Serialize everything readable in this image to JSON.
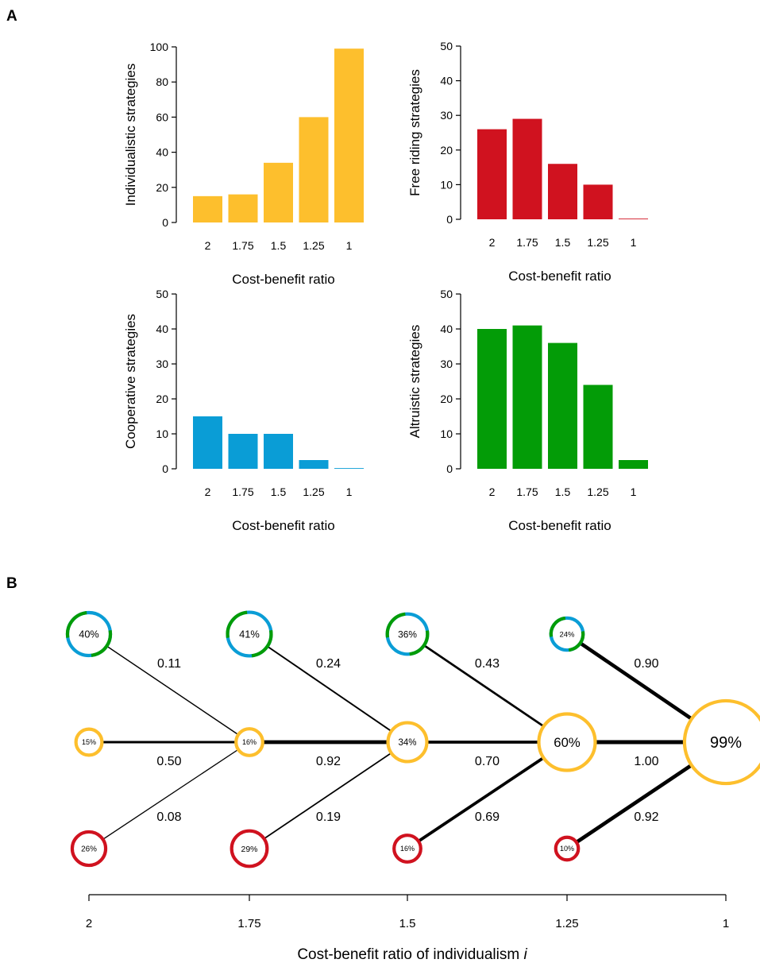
{
  "panels": {
    "a": "A",
    "b": "B"
  },
  "colors": {
    "individualistic": "#FDBF2D",
    "free_riding": "#D0121F",
    "cooperative": "#0A9DD6",
    "altruistic": "#039C07",
    "edge": "#000000"
  },
  "chart_data": [
    {
      "type": "bar",
      "panel": "A",
      "categories": [
        "2",
        "1.75",
        "1.5",
        "1.25",
        "1"
      ],
      "values": [
        15,
        16,
        34,
        60,
        99
      ],
      "title": "",
      "xlabel": "Cost-benefit ratio",
      "ylabel": "Individualistic strategies",
      "ylim": [
        0,
        100
      ],
      "yticks": [
        0,
        20,
        40,
        60,
        80,
        100
      ],
      "color": "#FDBF2D",
      "grid": false
    },
    {
      "type": "bar",
      "panel": "A",
      "categories": [
        "2",
        "1.75",
        "1.5",
        "1.25",
        "1"
      ],
      "values": [
        26,
        29,
        16,
        10,
        0.2
      ],
      "title": "",
      "xlabel": "Cost-benefit ratio",
      "ylabel": "Free riding strategies",
      "ylim": [
        0,
        50
      ],
      "yticks": [
        0,
        10,
        20,
        30,
        40,
        50
      ],
      "color": "#D0121F",
      "grid": false
    },
    {
      "type": "bar",
      "panel": "A",
      "categories": [
        "2",
        "1.75",
        "1.5",
        "1.25",
        "1"
      ],
      "values": [
        15,
        10,
        10,
        2.5,
        0.2
      ],
      "title": "",
      "xlabel": "Cost-benefit ratio",
      "ylabel": "Cooperative strategies",
      "ylim": [
        0,
        50
      ],
      "yticks": [
        0,
        10,
        20,
        30,
        40,
        50
      ],
      "color": "#0A9DD6",
      "grid": false
    },
    {
      "type": "bar",
      "panel": "A",
      "categories": [
        "2",
        "1.75",
        "1.5",
        "1.25",
        "1"
      ],
      "values": [
        40,
        41,
        36,
        24,
        2.5
      ],
      "title": "",
      "xlabel": "Cost-benefit ratio",
      "ylabel": "Altruistic strategies",
      "ylim": [
        0,
        50
      ],
      "yticks": [
        0,
        10,
        20,
        30,
        40,
        50
      ],
      "color": "#039C07",
      "grid": false
    },
    {
      "type": "network",
      "panel": "B",
      "xlabel": "Cost-benefit ratio of individualism ",
      "xlabel_italic": "i",
      "x_categories": [
        "2",
        "1.75",
        "1.5",
        "1.25",
        "1"
      ],
      "rows": [
        "top",
        "middle",
        "bottom"
      ],
      "nodes": [
        {
          "id": "t0",
          "col": 0,
          "row": "top",
          "label": "40%",
          "value": 40,
          "ring": "mixed"
        },
        {
          "id": "t1",
          "col": 1,
          "row": "top",
          "label": "41%",
          "value": 41,
          "ring": "mixed"
        },
        {
          "id": "t2",
          "col": 2,
          "row": "top",
          "label": "36%",
          "value": 36,
          "ring": "mixed"
        },
        {
          "id": "t3",
          "col": 3,
          "row": "top",
          "label": "24%",
          "value": 24,
          "ring": "mixed"
        },
        {
          "id": "m0",
          "col": 0,
          "row": "middle",
          "label": "15%",
          "value": 15,
          "ring": "individualistic"
        },
        {
          "id": "m1",
          "col": 1,
          "row": "middle",
          "label": "16%",
          "value": 16,
          "ring": "individualistic"
        },
        {
          "id": "m2",
          "col": 2,
          "row": "middle",
          "label": "34%",
          "value": 34,
          "ring": "individualistic"
        },
        {
          "id": "m3",
          "col": 3,
          "row": "middle",
          "label": "60%",
          "value": 60,
          "ring": "individualistic"
        },
        {
          "id": "m4",
          "col": 4,
          "row": "middle",
          "label": "99%",
          "value": 99,
          "ring": "individualistic"
        },
        {
          "id": "b0",
          "col": 0,
          "row": "bottom",
          "label": "26%",
          "value": 26,
          "ring": "free_riding"
        },
        {
          "id": "b1",
          "col": 1,
          "row": "bottom",
          "label": "29%",
          "value": 29,
          "ring": "free_riding"
        },
        {
          "id": "b2",
          "col": 2,
          "row": "bottom",
          "label": "16%",
          "value": 16,
          "ring": "free_riding"
        },
        {
          "id": "b3",
          "col": 3,
          "row": "bottom",
          "label": "10%",
          "value": 10,
          "ring": "free_riding"
        }
      ],
      "edges": [
        {
          "from": "t0",
          "to": "m1",
          "label": "0.11",
          "weight": 0.11
        },
        {
          "from": "m0",
          "to": "m1",
          "label": "0.50",
          "weight": 0.5
        },
        {
          "from": "b0",
          "to": "m1",
          "label": "0.08",
          "weight": 0.08
        },
        {
          "from": "t1",
          "to": "m2",
          "label": "0.24",
          "weight": 0.24
        },
        {
          "from": "m1",
          "to": "m2",
          "label": "0.92",
          "weight": 0.92
        },
        {
          "from": "b1",
          "to": "m2",
          "label": "0.19",
          "weight": 0.19
        },
        {
          "from": "t2",
          "to": "m3",
          "label": "0.43",
          "weight": 0.43
        },
        {
          "from": "m2",
          "to": "m3",
          "label": "0.70",
          "weight": 0.7
        },
        {
          "from": "b2",
          "to": "m3",
          "label": "0.69",
          "weight": 0.69
        },
        {
          "from": "t3",
          "to": "m4",
          "label": "0.90",
          "weight": 0.9
        },
        {
          "from": "m3",
          "to": "m4",
          "label": "1.00",
          "weight": 1.0
        },
        {
          "from": "b3",
          "to": "m4",
          "label": "0.92",
          "weight": 0.92
        }
      ]
    }
  ]
}
